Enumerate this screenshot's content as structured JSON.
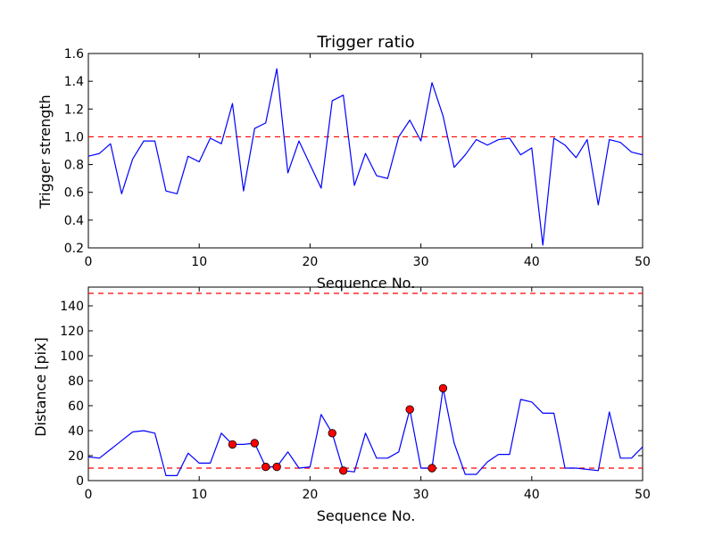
{
  "colors": {
    "line": "#0000ff",
    "threshold": "#ff0000",
    "marker_fill": "#ff0000",
    "marker_edge": "#000000",
    "frame": "#000000"
  },
  "chart_data": [
    {
      "type": "line",
      "title": "Trigger ratio",
      "xlabel": "Sequence No.",
      "ylabel": "Trigger strength",
      "xlim": [
        0,
        50
      ],
      "ylim": [
        0.2,
        1.6
      ],
      "xticks": [
        "0",
        "10",
        "20",
        "30",
        "40",
        "50"
      ],
      "yticks": [
        "0.2",
        "0.4",
        "0.6",
        "0.8",
        "1.0",
        "1.2",
        "1.4",
        "1.6"
      ],
      "grid": false,
      "series": [
        {
          "x": [
            0,
            1,
            2,
            3,
            4,
            5,
            6,
            7,
            8,
            9,
            10,
            11,
            12,
            13,
            14,
            15,
            16,
            17,
            18,
            19,
            20,
            21,
            22,
            23,
            24,
            25,
            26,
            27,
            28,
            29,
            30,
            31,
            32,
            33,
            34,
            35,
            36,
            37,
            38,
            39,
            40,
            41,
            42,
            43,
            44,
            45,
            46,
            47,
            48,
            49,
            50
          ],
          "values": [
            0.86,
            0.88,
            0.95,
            0.59,
            0.84,
            0.97,
            0.97,
            0.61,
            0.59,
            0.86,
            0.82,
            0.99,
            0.95,
            1.24,
            0.61,
            1.06,
            1.1,
            1.49,
            0.74,
            0.97,
            0.8,
            0.63,
            1.26,
            1.3,
            0.65,
            0.88,
            0.72,
            0.7,
            1.0,
            1.12,
            0.97,
            1.39,
            1.15,
            0.78,
            0.87,
            0.98,
            0.94,
            0.98,
            0.99,
            0.87,
            0.92,
            0.22,
            0.99,
            0.94,
            0.85,
            0.98,
            0.51,
            0.98,
            0.96,
            0.89,
            0.87
          ]
        }
      ],
      "reference_lines": [
        {
          "y": 1.0,
          "style": "dashed"
        }
      ]
    },
    {
      "type": "line",
      "title": "",
      "xlabel": "Sequence No.",
      "ylabel": "Distance [pix]",
      "xlim": [
        0,
        50
      ],
      "ylim": [
        0,
        155
      ],
      "xticks": [
        "0",
        "10",
        "20",
        "30",
        "40",
        "50"
      ],
      "yticks": [
        "0",
        "20",
        "40",
        "60",
        "80",
        "100",
        "120",
        "140"
      ],
      "grid": false,
      "series": [
        {
          "x": [
            0,
            1,
            2,
            3,
            4,
            5,
            6,
            7,
            8,
            9,
            10,
            11,
            12,
            13,
            14,
            15,
            16,
            17,
            18,
            19,
            20,
            21,
            22,
            23,
            24,
            25,
            26,
            27,
            28,
            29,
            30,
            31,
            32,
            33,
            34,
            35,
            36,
            37,
            38,
            39,
            40,
            41,
            42,
            43,
            44,
            45,
            46,
            47,
            48,
            49,
            50
          ],
          "values": [
            19,
            18,
            25,
            32,
            39,
            40,
            38,
            4,
            4,
            22,
            14,
            14,
            38,
            29,
            29,
            30,
            11,
            11,
            23,
            10,
            11,
            53,
            38,
            8,
            7,
            38,
            18,
            18,
            23,
            57,
            10,
            10,
            74,
            30,
            5,
            5,
            15,
            21,
            21,
            65,
            63,
            54,
            54,
            10,
            10,
            9,
            8,
            55,
            18,
            18,
            27
          ]
        }
      ],
      "markers": [
        {
          "x": 13,
          "y": 29
        },
        {
          "x": 15,
          "y": 30
        },
        {
          "x": 16,
          "y": 11
        },
        {
          "x": 17,
          "y": 11
        },
        {
          "x": 22,
          "y": 38
        },
        {
          "x": 23,
          "y": 8
        },
        {
          "x": 29,
          "y": 57
        },
        {
          "x": 31,
          "y": 10
        },
        {
          "x": 32,
          "y": 74
        }
      ],
      "reference_lines": [
        {
          "y": 150,
          "style": "dashed"
        },
        {
          "y": 10,
          "style": "dashed"
        }
      ]
    }
  ]
}
